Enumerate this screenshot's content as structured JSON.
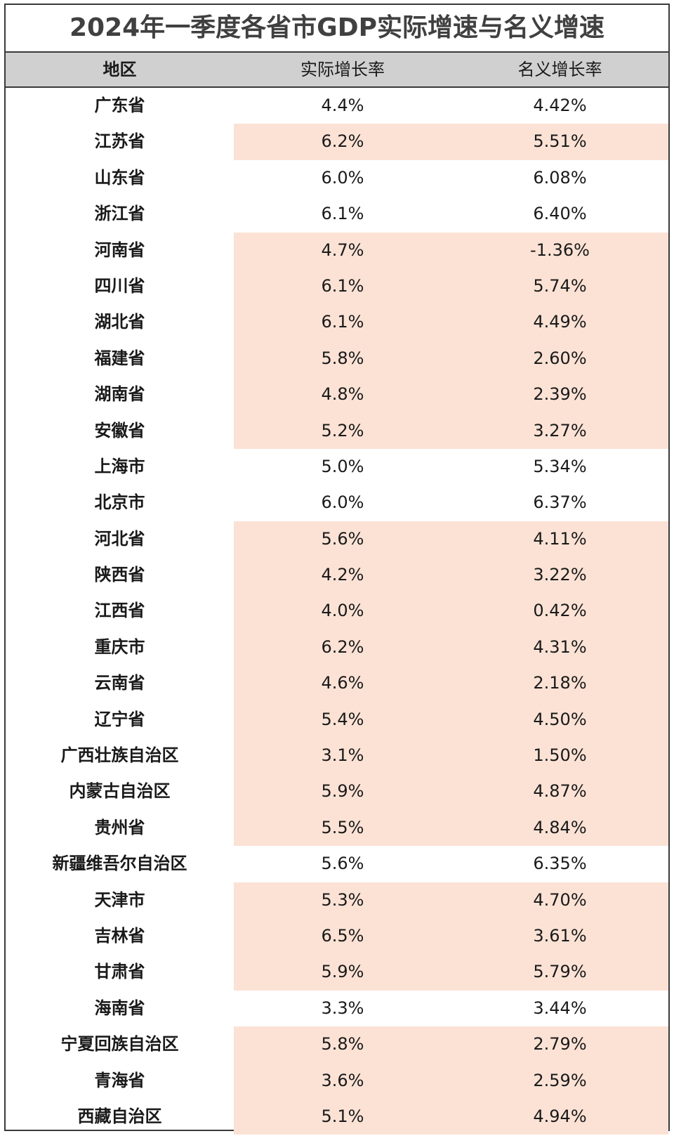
{
  "title": "2024年一季度各省市GDP实际增速与名义增速",
  "colors": {
    "highlight": "#fbe2d5",
    "header_bg": "#d0d0d0"
  },
  "headers": [
    "地区",
    "实际增长率",
    "名义增长率"
  ],
  "rows": [
    {
      "region": "广东省",
      "real": "4.4%",
      "nominal": "4.42%",
      "highlight": false
    },
    {
      "region": "江苏省",
      "real": "6.2%",
      "nominal": "5.51%",
      "highlight": true
    },
    {
      "region": "山东省",
      "real": "6.0%",
      "nominal": "6.08%",
      "highlight": false
    },
    {
      "region": "浙江省",
      "real": "6.1%",
      "nominal": "6.40%",
      "highlight": false
    },
    {
      "region": "河南省",
      "real": "4.7%",
      "nominal": "-1.36%",
      "highlight": true
    },
    {
      "region": "四川省",
      "real": "6.1%",
      "nominal": "5.74%",
      "highlight": true
    },
    {
      "region": "湖北省",
      "real": "6.1%",
      "nominal": "4.49%",
      "highlight": true
    },
    {
      "region": "福建省",
      "real": "5.8%",
      "nominal": "2.60%",
      "highlight": true
    },
    {
      "region": "湖南省",
      "real": "4.8%",
      "nominal": "2.39%",
      "highlight": true
    },
    {
      "region": "安徽省",
      "real": "5.2%",
      "nominal": "3.27%",
      "highlight": true
    },
    {
      "region": "上海市",
      "real": "5.0%",
      "nominal": "5.34%",
      "highlight": false
    },
    {
      "region": "北京市",
      "real": "6.0%",
      "nominal": "6.37%",
      "highlight": false
    },
    {
      "region": "河北省",
      "real": "5.6%",
      "nominal": "4.11%",
      "highlight": true
    },
    {
      "region": "陕西省",
      "real": "4.2%",
      "nominal": "3.22%",
      "highlight": true
    },
    {
      "region": "江西省",
      "real": "4.0%",
      "nominal": "0.42%",
      "highlight": true
    },
    {
      "region": "重庆市",
      "real": "6.2%",
      "nominal": "4.31%",
      "highlight": true
    },
    {
      "region": "云南省",
      "real": "4.6%",
      "nominal": "2.18%",
      "highlight": true
    },
    {
      "region": "辽宁省",
      "real": "5.4%",
      "nominal": "4.50%",
      "highlight": true
    },
    {
      "region": "广西壮族自治区",
      "real": "3.1%",
      "nominal": "1.50%",
      "highlight": true
    },
    {
      "region": "内蒙古自治区",
      "real": "5.9%",
      "nominal": "4.87%",
      "highlight": true
    },
    {
      "region": "贵州省",
      "real": "5.5%",
      "nominal": "4.84%",
      "highlight": true
    },
    {
      "region": "新疆维吾尔自治区",
      "real": "5.6%",
      "nominal": "6.35%",
      "highlight": false
    },
    {
      "region": "天津市",
      "real": "5.3%",
      "nominal": "4.70%",
      "highlight": true
    },
    {
      "region": "吉林省",
      "real": "6.5%",
      "nominal": "3.61%",
      "highlight": true
    },
    {
      "region": "甘肃省",
      "real": "5.9%",
      "nominal": "5.79%",
      "highlight": true
    },
    {
      "region": "海南省",
      "real": "3.3%",
      "nominal": "3.44%",
      "highlight": false
    },
    {
      "region": "宁夏回族自治区",
      "real": "5.8%",
      "nominal": "2.79%",
      "highlight": true
    },
    {
      "region": "青海省",
      "real": "3.6%",
      "nominal": "2.59%",
      "highlight": true
    },
    {
      "region": "西藏自治区",
      "real": "5.1%",
      "nominal": "4.94%",
      "highlight": true
    }
  ]
}
